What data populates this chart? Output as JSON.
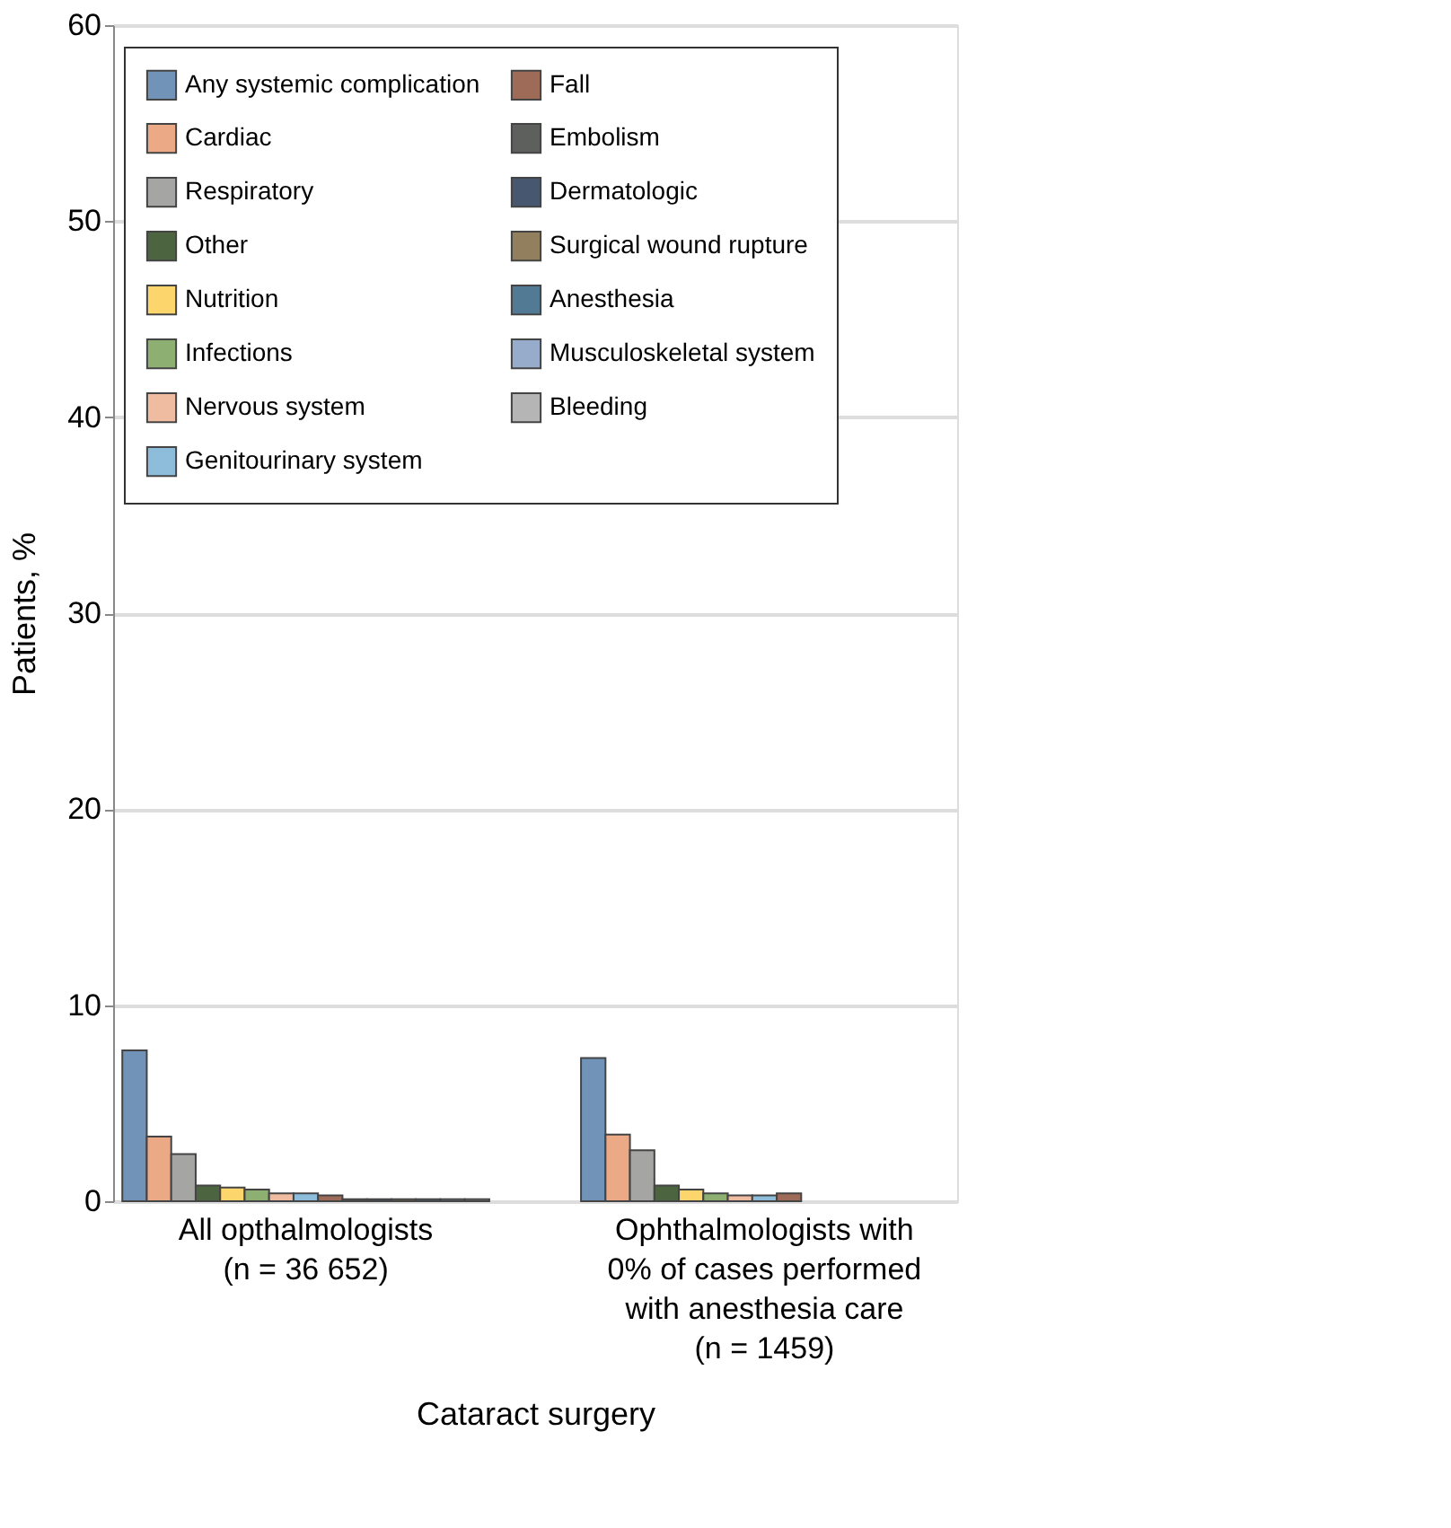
{
  "chart_data": {
    "type": "bar",
    "ylabel": "Patients, %",
    "xlabel": "Cataract surgery",
    "categories": [
      "All opthalmologists\n(n = 36 652)",
      "Ophthalmologists with\n0% of cases performed\nwith anesthesia care\n(n = 1459)"
    ],
    "series": [
      {
        "name": "Any systemic complication",
        "color": "#7193b8",
        "values": [
          7.7,
          7.3
        ]
      },
      {
        "name": "Cardiac",
        "color": "#eba986",
        "values": [
          3.3,
          3.4
        ]
      },
      {
        "name": "Respiratory",
        "color": "#a5a5a3",
        "values": [
          2.4,
          2.6
        ]
      },
      {
        "name": "Other",
        "color": "#4c6440",
        "values": [
          0.8,
          0.8
        ]
      },
      {
        "name": "Nutrition",
        "color": "#fcd56c",
        "values": [
          0.7,
          0.6
        ]
      },
      {
        "name": "Infections",
        "color": "#8db072",
        "values": [
          0.6,
          0.4
        ]
      },
      {
        "name": "Nervous system",
        "color": "#efbca1",
        "values": [
          0.4,
          0.3
        ]
      },
      {
        "name": "Genitourinary system",
        "color": "#8dbddb",
        "values": [
          0.4,
          0.3
        ]
      },
      {
        "name": "Fall",
        "color": "#9e6b59",
        "values": [
          0.3,
          0.4
        ]
      },
      {
        "name": "Embolism",
        "color": "#5e605e",
        "values": [
          0.1,
          null
        ]
      },
      {
        "name": "Dermatologic",
        "color": "#475770",
        "values": [
          0.1,
          null
        ]
      },
      {
        "name": "Surgical wound rupture",
        "color": "#927f5d",
        "values": [
          0.1,
          null
        ]
      },
      {
        "name": "Anesthesia",
        "color": "#537a94",
        "values": [
          0.1,
          null
        ]
      },
      {
        "name": "Musculoskeletal system",
        "color": "#97abca",
        "values": [
          0.1,
          null
        ]
      },
      {
        "name": "Bleeding",
        "color": "#b5b5b5",
        "values": [
          0.1,
          null
        ]
      }
    ],
    "ylim": [
      0,
      60
    ],
    "yticks": [
      0,
      10,
      20,
      30,
      40,
      50,
      60
    ],
    "grid": "y",
    "legend": "top left"
  }
}
